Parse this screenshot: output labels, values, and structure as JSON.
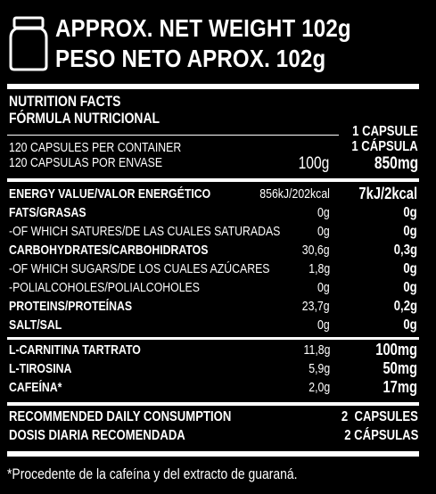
{
  "header": {
    "net_weight_en": "APPROX. NET WEIGHT 102g",
    "net_weight_es": "PESO NETO APROX. 102g"
  },
  "icons": {
    "jar": "jar-icon"
  },
  "facts": {
    "title_en": "NUTRITION FACTS",
    "title_es": "FÓRMULA NUTRICIONAL",
    "serving_en": "1 CAPSULE",
    "serving_es": "1 CÁPSULA",
    "capsules_per_container_en": "120 CAPSULES PER CONTAINER",
    "capsules_per_container_es": "120 CAPSULAS POR ENVASE",
    "per_100g_header": "100g",
    "per_capsule_header": "850mg"
  },
  "nutrients": [
    {
      "label": "ENERGY VALUE/VALOR ENERGÉTICO",
      "per100": "856kJ/202kcal",
      "per_capsule": "7kJ/2kcal",
      "bold": true
    },
    {
      "label": "FATS/GRASAS",
      "per100": "0g",
      "per_capsule": "0g",
      "bold": true
    },
    {
      "label": "-OF WHICH SATURES/DE LAS CUALES SATURADAS",
      "per100": "0g",
      "per_capsule": "0g",
      "bold": false
    },
    {
      "label": "CARBOHYDRATES/CARBOHIDRATOS",
      "per100": "30,6g",
      "per_capsule": "0,3g",
      "bold": true
    },
    {
      "label": "-OF WHICH SUGARS/DE LOS CUALES AZÚCARES",
      "per100": "1,8g",
      "per_capsule": "0g",
      "bold": false
    },
    {
      "label": "-POLIALCOHOLES/POLIALCOHOLES",
      "per100": "0g",
      "per_capsule": "0g",
      "bold": false
    },
    {
      "label": "PROTEINS/PROTEÍNAS",
      "per100": "23,7g",
      "per_capsule": "0,2g",
      "bold": true
    },
    {
      "label": "SALT/SAL",
      "per100": "0g",
      "per_capsule": "0g",
      "bold": true
    }
  ],
  "ingredients": [
    {
      "label": "L-CARNITINA TARTRATO",
      "per100": "11,8g",
      "per_capsule": "100mg"
    },
    {
      "label": "L-TIROSINA",
      "per100": "5,9g",
      "per_capsule": "50mg"
    },
    {
      "label": "CAFEÍNA*",
      "per100": "2,0g",
      "per_capsule": "17mg"
    }
  ],
  "dosage": {
    "label_en": "RECOMMENDED DAILY CONSUMPTION",
    "label_es": "DOSIS DIARIA RECOMENDADA",
    "value_en": "2  CAPSULES",
    "value_es": "2 CÁPSULAS"
  },
  "footnote": "*Procedente de la cafeína y del extracto de guaraná."
}
